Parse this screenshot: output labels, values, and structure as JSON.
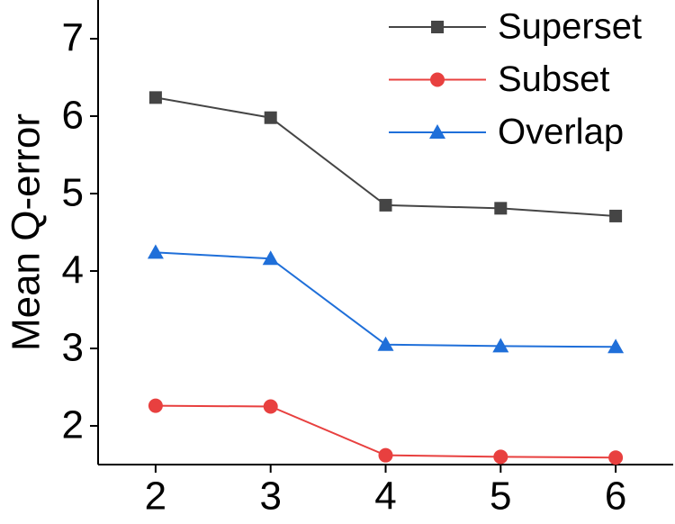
{
  "chart_data": {
    "type": "line",
    "y_label": "Mean Q-error",
    "x": [
      2,
      3,
      4,
      5,
      6
    ],
    "series": [
      {
        "name": "Superset",
        "color": "#454545",
        "marker": "square",
        "values": [
          6.24,
          5.98,
          4.85,
          4.81,
          4.71
        ]
      },
      {
        "name": "Subset",
        "color": "#e8403f",
        "marker": "circle",
        "values": [
          2.26,
          2.25,
          1.62,
          1.6,
          1.59
        ]
      },
      {
        "name": "Overlap",
        "color": "#1f6fd9",
        "marker": "triangle",
        "values": [
          4.24,
          4.16,
          3.05,
          3.03,
          3.02
        ]
      }
    ],
    "xlim": [
      1.5,
      6.5
    ],
    "xticks": [
      2,
      3,
      4,
      5,
      6
    ],
    "ylim": [
      1.5,
      7.5
    ],
    "yticks": [
      2,
      3,
      4,
      5,
      6,
      7
    ],
    "grid": false,
    "legend": "top-right"
  }
}
